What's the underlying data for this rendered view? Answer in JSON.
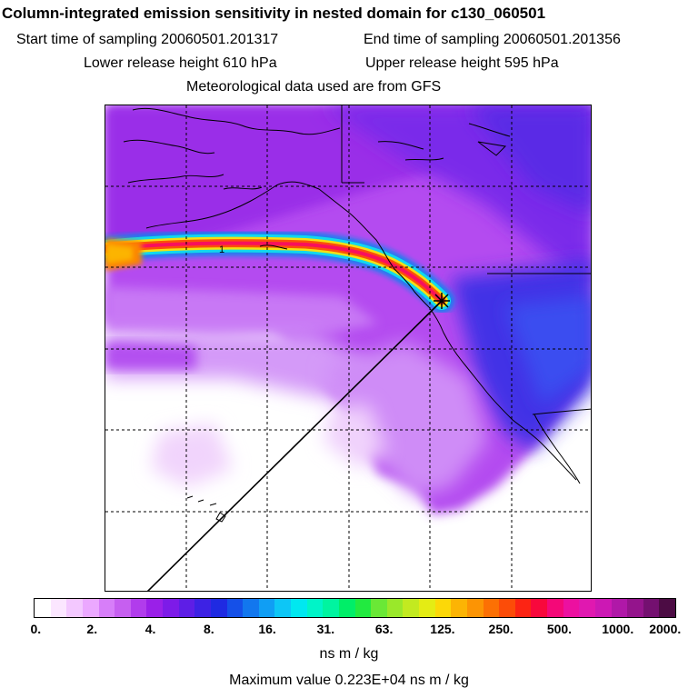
{
  "header": {
    "title": "Column-integrated emission sensitivity in nested domain for c130_060501",
    "start_time": "Start time of sampling 20060501.201317",
    "end_time": "End time of sampling 20060501.201356",
    "lower_release": "Lower release height  610 hPa",
    "upper_release": "Upper release height  595 hPa",
    "met_data": "Meteorological data used are from GFS"
  },
  "map": {
    "contour_label": "1",
    "release_marker": "release-site-cross"
  },
  "colorbar": {
    "ticks": [
      "0.",
      "2.",
      "4.",
      "8.",
      "16.",
      "31.",
      "63.",
      "125.",
      "250.",
      "500.",
      "1000.",
      "2000."
    ],
    "colors": [
      "#ffffff",
      "#fbe6ff",
      "#f3c8ff",
      "#eba8ff",
      "#d77ef9",
      "#c65ff0",
      "#b13cec",
      "#9a20e8",
      "#7d1be8",
      "#5e1ee6",
      "#3d22e4",
      "#1f2ae2",
      "#1550e8",
      "#1277ee",
      "#109ef4",
      "#0dc6f6",
      "#00e8f0",
      "#00f4c8",
      "#00f4a0",
      "#00ee68",
      "#22ea40",
      "#6ae836",
      "#9ae82a",
      "#c2ea20",
      "#e4ec14",
      "#fcd808",
      "#fcb404",
      "#fc9404",
      "#fc7004",
      "#fc4c08",
      "#fc2414",
      "#f8083c",
      "#f40878",
      "#ec10a0",
      "#e018b0",
      "#cc18b4",
      "#b018a8",
      "#94148c",
      "#741070",
      "#4c0c44"
    ],
    "units": "ns m / kg",
    "max_value": "Maximum value  0.223E+04 ns m / kg"
  }
}
